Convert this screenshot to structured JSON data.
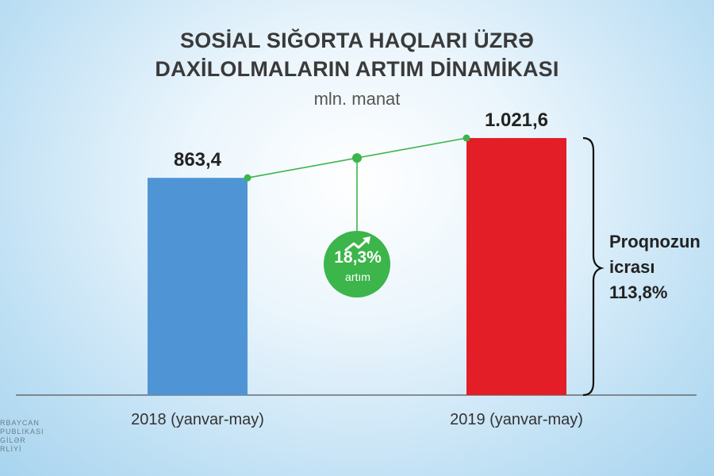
{
  "chart_data": {
    "type": "bar",
    "title_line1": "SOSİAL SIĞORTA HAQLARI ÜZRƏ",
    "title_line2": "DAXİLOLMALARIN ARTIM DİNAMİKASI",
    "subtitle": "mln. manat",
    "categories": [
      "2018 (yanvar-may)",
      "2019 (yanvar-may)"
    ],
    "values": [
      863.4,
      1021.6
    ],
    "value_labels": [
      "863,4",
      "1.021,6"
    ],
    "bar_colors": [
      "#4f95d6",
      "#e31e26"
    ],
    "ylim": [
      0,
      1021.6
    ],
    "growth": {
      "value": "18,3%",
      "label": "artım",
      "color": "#3cb54a"
    },
    "forecast": {
      "line1": "Proqnozun",
      "line2": "icrası",
      "line3": "113,8%"
    },
    "grid": false
  },
  "logo": {
    "line1": "RBAYCAN",
    "line2": "PUBLIKASI",
    "line3": "GİLƏR",
    "line4": "RLİYİ"
  }
}
